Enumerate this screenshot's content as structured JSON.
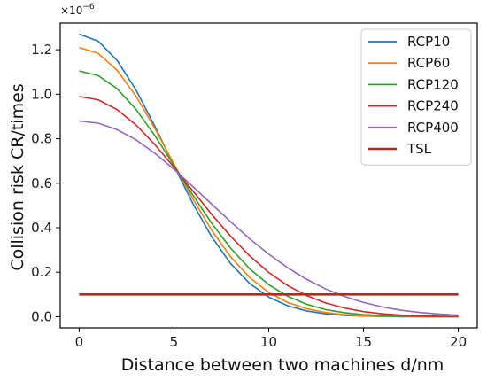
{
  "chart_data": {
    "type": "line",
    "title": "",
    "xlabel": "Distance between two machines d/nm",
    "ylabel": "Collision risk CR/times",
    "y_multiplier": {
      "base": "×10",
      "exp": "−6"
    },
    "xlim": [
      -1,
      21
    ],
    "ylim": [
      -0.05,
      1.32
    ],
    "x_ticks": [
      0,
      5,
      10,
      15,
      20
    ],
    "x_tick_labels": [
      "0",
      "5",
      "10",
      "15",
      "20"
    ],
    "y_ticks": [
      0.0,
      0.2,
      0.4,
      0.6,
      0.8,
      1.0,
      1.2
    ],
    "y_tick_labels": [
      "0.0",
      "0.2",
      "0.4",
      "0.6",
      "0.8",
      "1.0",
      "1.2"
    ],
    "grid": false,
    "legend_position": "top-right",
    "x": [
      0,
      1,
      2,
      3,
      4,
      5,
      6,
      7,
      8,
      9,
      10,
      11,
      12,
      13,
      14,
      15,
      16,
      17,
      18,
      19,
      20
    ],
    "series": [
      {
        "name": "RCP10",
        "color": "#1f77b4",
        "values": [
          1.27,
          1.239,
          1.152,
          1.019,
          0.855,
          0.679,
          0.508,
          0.358,
          0.238,
          0.149,
          0.088,
          0.049,
          0.026,
          0.013,
          0.006,
          0.003,
          0.001,
          0.0,
          0.0,
          0.0,
          0.0
        ]
      },
      {
        "name": "RCP60",
        "color": "#ff7f0e",
        "values": [
          1.21,
          1.184,
          1.108,
          0.991,
          0.845,
          0.686,
          0.529,
          0.387,
          0.268,
          0.176,
          0.109,
          0.064,
          0.036,
          0.019,
          0.009,
          0.004,
          0.002,
          0.001,
          0.0,
          0.0,
          0.0
        ]
      },
      {
        "name": "RCP120",
        "color": "#2ca02c",
        "values": [
          1.105,
          1.084,
          1.025,
          0.932,
          0.813,
          0.68,
          0.546,
          0.419,
          0.307,
          0.215,
          0.144,
          0.092,
          0.056,
          0.032,
          0.018,
          0.009,
          0.005,
          0.002,
          0.001,
          0.0,
          0.0
        ]
      },
      {
        "name": "RCP240",
        "color": "#d62728",
        "values": [
          0.99,
          0.975,
          0.931,
          0.862,
          0.773,
          0.672,
          0.565,
          0.459,
          0.361,
          0.273,
          0.199,
          0.14,
          0.095,
          0.062,
          0.039,
          0.023,
          0.013,
          0.007,
          0.004,
          0.002,
          0.001
        ]
      },
      {
        "name": "RCP400",
        "color": "#9467bd",
        "values": [
          0.88,
          0.87,
          0.841,
          0.795,
          0.734,
          0.663,
          0.585,
          0.505,
          0.426,
          0.35,
          0.281,
          0.22,
          0.168,
          0.125,
          0.091,
          0.064,
          0.044,
          0.029,
          0.019,
          0.012,
          0.007
        ]
      },
      {
        "name": "TSL",
        "color": "#c62020",
        "values": [
          0.1,
          0.1,
          0.1,
          0.1,
          0.1,
          0.1,
          0.1,
          0.1,
          0.1,
          0.1,
          0.1,
          0.1,
          0.1,
          0.1,
          0.1,
          0.1,
          0.1,
          0.1,
          0.1,
          0.1,
          0.1
        ]
      }
    ]
  }
}
